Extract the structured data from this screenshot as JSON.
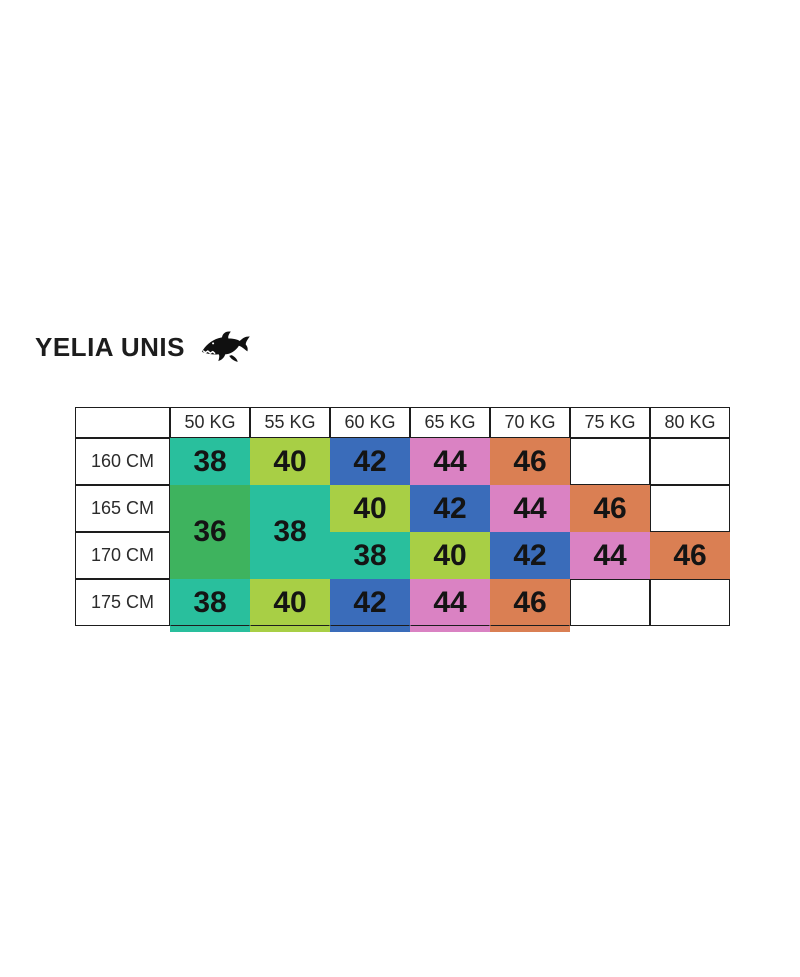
{
  "brand": {
    "title": "YELIA UNIS",
    "logo": "shark-icon"
  },
  "chart_data": {
    "type": "table",
    "title": "YELIA UNIS",
    "subtitle": "",
    "columns": [
      "50 KG",
      "55 KG",
      "60 KG",
      "65 KG",
      "70 KG",
      "75 KG",
      "80 KG"
    ],
    "row_labels": [
      "160 CM",
      "165 CM",
      "170 CM",
      "175 CM"
    ],
    "rows": [
      {
        "label": "160 CM",
        "cells": [
          {
            "v": "38",
            "color": "teal"
          },
          {
            "v": "40",
            "color": "lime"
          },
          {
            "v": "42",
            "color": "blue"
          },
          {
            "v": "44",
            "color": "pink"
          },
          {
            "v": "46",
            "color": "orange"
          },
          {
            "v": "",
            "color": null
          },
          {
            "v": "",
            "color": null
          }
        ]
      },
      {
        "label": "165 CM",
        "cells": [
          {
            "v": "36",
            "color": "green",
            "rowspan": 2
          },
          {
            "v": "38",
            "color": "teal",
            "rowspan": 2
          },
          {
            "v": "40",
            "color": "lime"
          },
          {
            "v": "42",
            "color": "blue"
          },
          {
            "v": "44",
            "color": "pink"
          },
          {
            "v": "46",
            "color": "orange"
          },
          {
            "v": "",
            "color": null
          }
        ]
      },
      {
        "label": "170 CM",
        "cells": [
          {
            "v": "38",
            "color": "teal"
          },
          {
            "v": "40",
            "color": "lime"
          },
          {
            "v": "42",
            "color": "blue"
          },
          {
            "v": "44",
            "color": "pink"
          },
          {
            "v": "46",
            "color": "orange"
          }
        ]
      },
      {
        "label": "175 CM",
        "cells": [
          {
            "v": "38",
            "color": "teal"
          },
          {
            "v": "40",
            "color": "lime"
          },
          {
            "v": "42",
            "color": "blue"
          },
          {
            "v": "44",
            "color": "pink"
          },
          {
            "v": "46",
            "color": "orange"
          },
          {
            "v": "",
            "color": null
          },
          {
            "v": "",
            "color": null
          }
        ]
      }
    ],
    "values": [
      [
        38,
        40,
        42,
        44,
        46,
        null,
        null
      ],
      [
        36,
        38,
        40,
        42,
        44,
        46,
        null
      ],
      [
        36,
        38,
        38,
        40,
        42,
        44,
        46
      ],
      [
        38,
        40,
        42,
        44,
        46,
        null,
        null
      ]
    ],
    "palette": {
      "teal": "#29bf9d",
      "green": "#3eb35e",
      "lime": "#a8cf45",
      "blue": "#3a6cba",
      "pink": "#da82c3",
      "orange": "#da7f53"
    },
    "grid_color": "#1d1d1d",
    "layout": {
      "grid": "on",
      "legend": "none",
      "merged_note": "size 36 and 38 blocks span 165-170 CM rows"
    }
  }
}
